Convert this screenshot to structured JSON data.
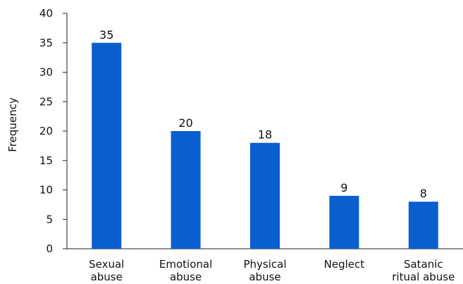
{
  "chart_data": {
    "type": "bar",
    "title": "",
    "xlabel": "",
    "ylabel": "Frequency",
    "ylim": [
      0,
      40
    ],
    "yticks": [
      0,
      5,
      10,
      15,
      20,
      25,
      30,
      35,
      40
    ],
    "grid": false,
    "legend": "none",
    "categories": [
      [
        "Sexual",
        "abuse"
      ],
      [
        "Emotional",
        "abuse"
      ],
      [
        "Physical",
        "abuse"
      ],
      [
        "Neglect"
      ],
      [
        "Satanic",
        "ritual abuse"
      ]
    ],
    "values": [
      35,
      20,
      18,
      9,
      8
    ],
    "data_labels": [
      "35",
      "20",
      "18",
      "9",
      "8"
    ],
    "bar_color": "#0a5fce",
    "axis_color": "#222222"
  }
}
